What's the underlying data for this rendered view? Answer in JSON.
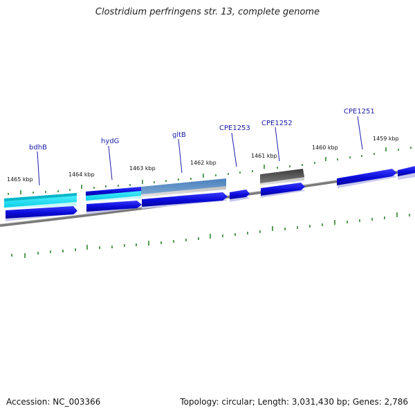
{
  "title": "Clostridium perfringens str. 13, complete genome",
  "footer": {
    "accession": "Accession: NC_003366",
    "summary": "Topology: circular; Length: 3,031,430 bp; Genes: 2,786"
  },
  "ticks": [
    "1465 kbp",
    "1464 kbp",
    "1463 kbp",
    "1462 kbp",
    "1461 kbp",
    "1460 kbp",
    "1459 kbp"
  ],
  "genes": [
    "bdhB",
    "hydG",
    "gltB",
    "CPE1253",
    "CPE1252",
    "CPE1251"
  ],
  "colors": {
    "backbone": "#888888",
    "tick_marks": "#1e7a1e",
    "gene_blue": "#1010e0",
    "gene_cyan": "#10e0f0",
    "gene_steel": "#4f86b8",
    "gene_gray": "#555555",
    "label_blue": "#1a1aa8"
  }
}
